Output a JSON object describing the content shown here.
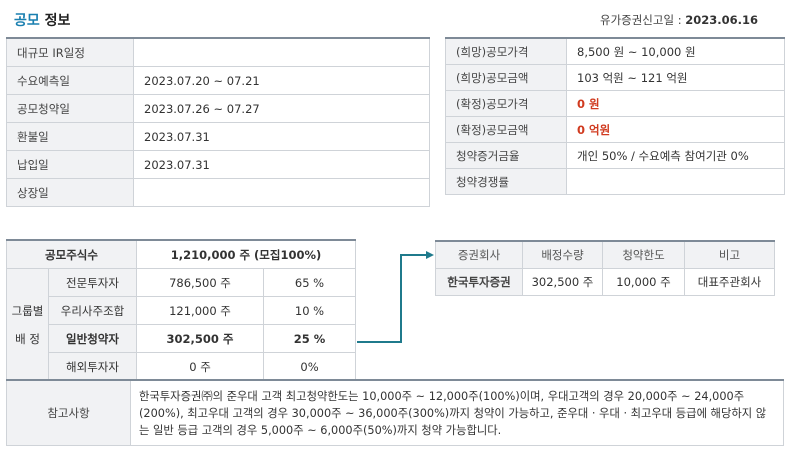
{
  "header": {
    "title_main": "공모",
    "title_rest": " 정보",
    "filing_label": "유가증권신고일 : ",
    "filing_date": "2023.06.16"
  },
  "schedule": [
    {
      "label": "대규모 IR일정",
      "value": ""
    },
    {
      "label": "수요예측일",
      "value": "2023.07.20 ~ 07.21"
    },
    {
      "label": "공모청약일",
      "value": "2023.07.26 ~ 07.27"
    },
    {
      "label": "환불일",
      "value": "2023.07.31"
    },
    {
      "label": "납입일",
      "value": "2023.07.31"
    },
    {
      "label": "상장일",
      "value": ""
    }
  ],
  "pricing": [
    {
      "label": "(희망)공모가격",
      "value": "8,500 원 ~ 10,000 원",
      "highlight": false
    },
    {
      "label": "(희망)공모금액",
      "value": "103 억원  ~ 121 억원",
      "highlight": false
    },
    {
      "label": "(확정)공모가격",
      "value": "0 원",
      "highlight": true
    },
    {
      "label": "(확정)공모금액",
      "value": "0 억원",
      "highlight": true
    },
    {
      "label": "청약증거금율",
      "value": "개인 50% / 수요예측 참여기관 0%",
      "highlight": false
    },
    {
      "label": "청약경쟁률",
      "value": "",
      "highlight": false
    }
  ],
  "allocation": {
    "total_label": "공모주식수",
    "total_value": "1,210,000 주 (모집100%)",
    "group_label_1": "그룹별",
    "group_label_2": "배 정",
    "rows": [
      {
        "label": "전문투자자",
        "shares": "786,500 주",
        "pct": "65 %",
        "bold": false
      },
      {
        "label": "우리사주조합",
        "shares": "121,000 주",
        "pct": "10 %",
        "bold": false
      },
      {
        "label": "일반청약자",
        "shares": "302,500 주",
        "pct": "25 %",
        "bold": true
      },
      {
        "label": "해외투자자",
        "shares": "0 주",
        "pct": "0%",
        "bold": false
      }
    ]
  },
  "underwriters": {
    "headers": [
      "증권회사",
      "배정수량",
      "청약한도",
      "비고"
    ],
    "rows": [
      {
        "company": "한국투자증권",
        "quantity": "302,500 주",
        "limit": "10,000 주",
        "note": "대표주관회사"
      }
    ]
  },
  "notes": {
    "label": "참고사항",
    "text": "한국투자증권㈜의 준우대 고객 최고청약한도는 10,000주 ~ 12,000주(100%)이며, 우대고객의 경우 20,000주 ~ 24,000주(200%), 최고우대 고객의 경우 30,000주 ~ 36,000주(300%)까지 청약이 가능하고, 준우대 · 우대 · 최고우대 등급에 해당하지 않는 일반 등급 고객의 경우 5,000주 ~ 6,000주(50%)까지 청약 가능합니다."
  },
  "colors": {
    "accent": "#1a7fb0",
    "highlight": "#d03a1f",
    "arrow": "#1f7a8c"
  }
}
